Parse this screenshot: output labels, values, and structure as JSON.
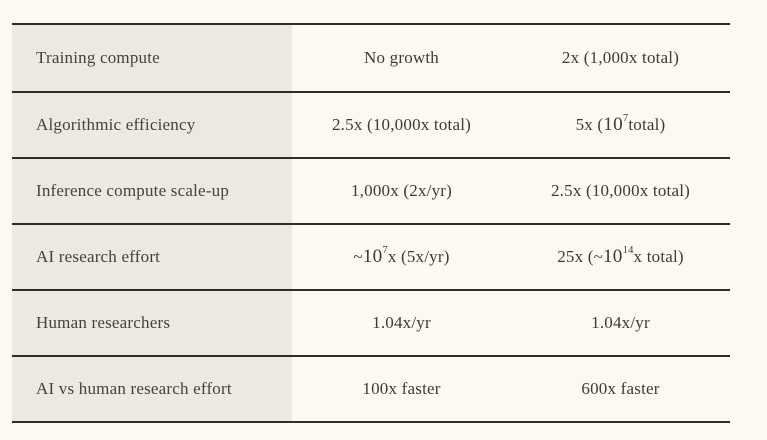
{
  "table": {
    "description": "comparison-table-two-scenarios",
    "rows": [
      {
        "label": "Training compute",
        "col1": [
          {
            "text": "No growth"
          }
        ],
        "col2": [
          {
            "text": "2x (1,000x total)"
          }
        ]
      },
      {
        "label": "Algorithmic efficiency",
        "col1": [
          {
            "text": "2.5x (10,000x total)"
          }
        ],
        "col2": [
          {
            "text": "5x ("
          },
          {
            "math": "10"
          },
          {
            "sup": "7"
          },
          {
            "text": " total)"
          }
        ]
      },
      {
        "label": "Inference compute scale-up",
        "col1": [
          {
            "text": "1,000x (2x/yr)"
          }
        ],
        "col2": [
          {
            "text": "2.5x (10,000x total)"
          }
        ]
      },
      {
        "label": "AI research effort",
        "col1": [
          {
            "text": "~"
          },
          {
            "math": "10"
          },
          {
            "sup": "7"
          },
          {
            "text": "x (5x/yr)"
          }
        ],
        "col2": [
          {
            "text": "25x (~"
          },
          {
            "math": "10"
          },
          {
            "sup": "14"
          },
          {
            "text": "x total)"
          }
        ]
      },
      {
        "label": "Human researchers",
        "col1": [
          {
            "text": "1.04x/yr"
          }
        ],
        "col2": [
          {
            "text": "1.04x/yr"
          }
        ]
      },
      {
        "label": "AI vs human research effort",
        "col1": [
          {
            "text": "100x faster"
          }
        ],
        "col2": [
          {
            "text": "600x faster"
          }
        ]
      }
    ]
  },
  "colors": {
    "page_background": "#FBF9F2",
    "label_column_background": "#ECE9E1",
    "rule": "#2F2D26",
    "text": "#3E3B35"
  }
}
